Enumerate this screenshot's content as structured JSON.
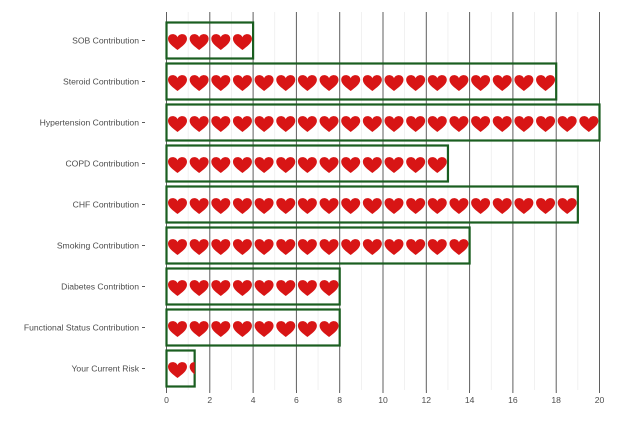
{
  "chart_data": {
    "type": "bar",
    "title": "",
    "xlabel": "",
    "ylabel": "",
    "xlim": [
      0,
      20
    ],
    "x_ticks": [
      0,
      2,
      4,
      6,
      8,
      10,
      12,
      14,
      16,
      18,
      20
    ],
    "x_tick_labels": [
      "0",
      "2",
      "4",
      "6",
      "8",
      "10",
      "12",
      "14",
      "16",
      "18",
      "20"
    ],
    "orientation": "horizontal",
    "grid": true,
    "mark": "heart-icon",
    "colors": {
      "bar_outline": "#1a5e20",
      "heart": "#d81515",
      "major_grid": "#5f5f5f",
      "minor_grid": "#ebebeb",
      "label": "#4d4d4d"
    },
    "categories": [
      "SOB Contribution",
      "Steroid Contribution",
      "Hypertension Contribution",
      "COPD Contribution",
      "CHF Contribution",
      "Smoking Contribution",
      "Diabetes Contribtion",
      "Functional Status Contribution",
      "Your Current Risk"
    ],
    "values": [
      4,
      18,
      20,
      13,
      19,
      14,
      8,
      8,
      1.3
    ]
  }
}
